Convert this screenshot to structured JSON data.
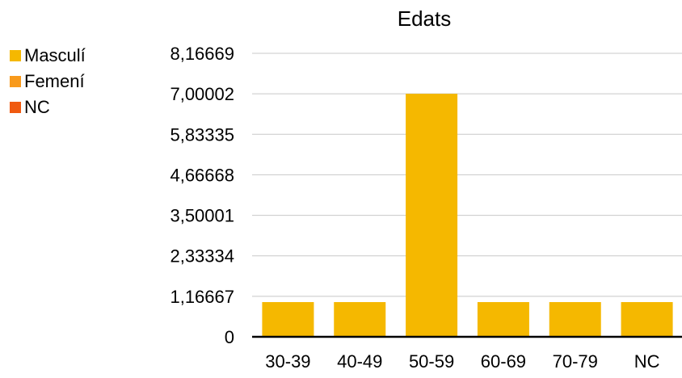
{
  "chart_data": {
    "type": "bar",
    "title": "Edats",
    "xlabel": "",
    "ylabel": "",
    "categories": [
      "30-39",
      "40-49",
      "50-59",
      "60-69",
      "70-79",
      "NC"
    ],
    "series": [
      {
        "name": "Masculí",
        "color": "#F5B800",
        "values": [
          1,
          1,
          7,
          1,
          1,
          1
        ]
      },
      {
        "name": "Femení",
        "color": "#F89A1C",
        "values": [
          0,
          0,
          0,
          0,
          0,
          0
        ]
      },
      {
        "name": "NC",
        "color": "#F05A10",
        "values": [
          0,
          0,
          0,
          0,
          0,
          0
        ]
      }
    ],
    "yticks": [
      "0",
      "1,16667",
      "2,33334",
      "3,50001",
      "4,66668",
      "5,83335",
      "7,00002",
      "8,16669"
    ],
    "ytick_values": [
      0,
      1.16667,
      2.33334,
      3.50001,
      4.66668,
      5.83335,
      7.00002,
      8.16669
    ],
    "ylim": [
      0,
      8.16669
    ],
    "grid": true,
    "legend_position": "left"
  }
}
